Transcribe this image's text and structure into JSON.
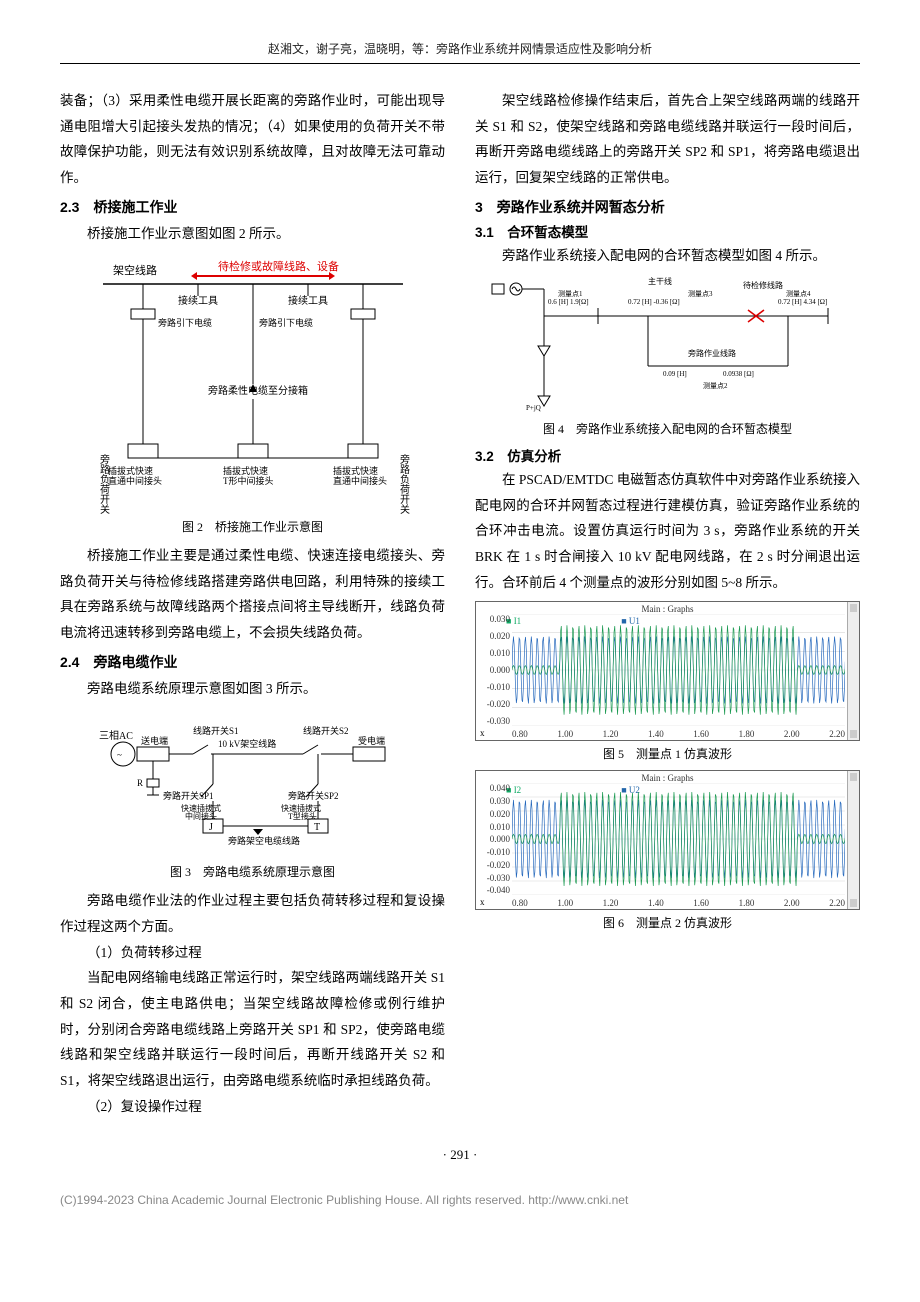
{
  "header": "赵湘文，谢子亮，温晓明，等：旁路作业系统并网情景适应性及影响分析",
  "left": {
    "p1": "装备；（3）采用柔性电缆开展长距离的旁路作业时，可能出现导通电阻增大引起接头发热的情况；（4）如果使用的负荷开关不带故障保护功能，则无法有效识别系统故障，且对故障无法可靠动作。",
    "s23": "2.3　桥接施工作业",
    "p2": "桥接施工作业示意图如图 2 所示。",
    "fig2_caption": "图 2　桥接施工作业示意图",
    "fig2": {
      "labels": {
        "top1": "架空线路",
        "top2": "待检修或故障线路、设备",
        "t1": "接续工具",
        "t2": "接续工具",
        "side_left": "旁路负荷开关",
        "side_right": "旁路负荷开关",
        "r1": "旁路引下电缆",
        "r2": "旁路引下电缆",
        "mid": "旁路柔性电缆至分接箱",
        "b1": "插拔式快速直通中间接头",
        "b2": "插拔式快速T形中间接头",
        "b3": "插拔式快速直通中间接头"
      }
    },
    "p3": "桥接施工作业主要是通过柔性电缆、快速连接电缆接头、旁路负荷开关与待检修线路搭建旁路供电回路，利用特殊的接续工具在旁路系统与故障线路两个搭接点间将主导线断开，线路负荷电流将迅速转移到旁路电缆上，不会损失线路负荷。",
    "s24": "2.4　旁路电缆作业",
    "p4": "旁路电缆系统原理示意图如图 3 所示。",
    "fig3_caption": "图 3　旁路电缆系统原理示意图",
    "fig3": {
      "labels": {
        "ac": "三相AC",
        "send": "送电端",
        "s1": "线路开关S1",
        "line": "10 kV架空线路",
        "s2": "线路开关S2",
        "recv": "受电端",
        "r": "R",
        "sp1": "旁路开关SP1",
        "sp2": "旁路开关SP2",
        "j1": "快速插拔式中间接头",
        "j2": "快速插拔式T型接头",
        "J": "J",
        "T": "T",
        "bottom": "旁路架空电缆线路"
      }
    },
    "p5": "旁路电缆作业法的作业过程主要包括负荷转移过程和复设操作过程这两个方面。",
    "p6": "（1）负荷转移过程",
    "p7": "当配电网络输电线路正常运行时，架空线路两端线路开关 S1 和 S2 闭合，使主电路供电；当架空线路故障检修或例行维护时，分别闭合旁路电缆线路上旁路开关 SP1 和 SP2，使旁路电缆线路和架空线路并联运行一段时间后，再断开线路开关 S2 和 S1，将架空线路退出运行，由旁路电缆系统临时承担线路负荷。",
    "p8": "（2）复设操作过程"
  },
  "right": {
    "p1": "架空线路检修操作结束后，首先合上架空线路两端的线路开关 S1 和 S2，使架空线路和旁路电缆线路并联运行一段时间后，再断开旁路电缆线路上的旁路开关 SP2 和 SP1，将旁路电缆退出运行，回复架空线路的正常供电。",
    "s3": "3　旁路作业系统并网暂态分析",
    "s31": "3.1　合环暂态模型",
    "p2": "旁路作业系统接入配电网的合环暂态模型如图 4 所示。",
    "fig4": {
      "top": "主干线",
      "pt1": "测量点1",
      "pt3": "测量点3",
      "pt4": "测量点4",
      "impA": "0.6 [H] 1.9[Ω]",
      "impB": "0.72 [H] -0.36 [Ω]",
      "impC": "0.72 [H] 4.34 [Ω]",
      "fault": "待检修线路",
      "bypass": "旁路作业线路",
      "impD": "0.09 [H]",
      "impE": "0.0938 [Ω]",
      "pt2": "测量点2"
    },
    "fig4_caption": "图 4　旁路作业系统接入配电网的合环暂态模型",
    "s32": "3.2　仿真分析",
    "p3": "在 PSCAD/EMTDC 电磁暂态仿真软件中对旁路作业系统接入配电网的合环并网暂态过程进行建模仿真，验证旁路作业系统的合环冲击电流。设置仿真运行时间为 3 s，旁路作业系统的开关 BRK 在 1 s 时合闸接入 10 kV 配电网线路，在 2 s 时分闸退出运行。合环前后 4 个测量点的波形分别如图 5~8 所示。",
    "fig5_caption": "图 5　测量点 1 仿真波形",
    "fig6_caption": "图 6　测量点 2 仿真波形",
    "chart_title": "Main : Graphs",
    "chart5": {
      "legend_i": "I1",
      "legend_u": "U1",
      "y_ticks": [
        "0.030",
        "0.020",
        "0.010",
        "0.000",
        "-0.010",
        "-0.020",
        "-0.030"
      ],
      "x_ticks": [
        "0.80",
        "1.00",
        "1.20",
        "1.40",
        "1.60",
        "1.80",
        "2.00",
        "2.20"
      ],
      "x_label": "x",
      "colors": {
        "i": "#1a9950",
        "u": "#2266bb",
        "grid": "#d8d8d8"
      }
    },
    "chart6": {
      "legend_i": "I2",
      "legend_u": "U2",
      "y_ticks": [
        "0.040",
        "0.030",
        "0.020",
        "0.010",
        "0.000",
        "-0.010",
        "-0.020",
        "-0.030",
        "-0.040"
      ],
      "x_ticks": [
        "0.80",
        "1.00",
        "1.20",
        "1.40",
        "1.60",
        "1.80",
        "2.00",
        "2.20"
      ],
      "x_label": "x",
      "colors": {
        "i": "#1a9950",
        "u": "#2266bb",
        "grid": "#d8d8d8"
      }
    }
  },
  "page_num": "· 291 ·",
  "footer": {
    "text": "(C)1994-2023 China Academic Journal Electronic Publishing House. All rights reserved.    ",
    "link": "http://www.cnki.net"
  }
}
